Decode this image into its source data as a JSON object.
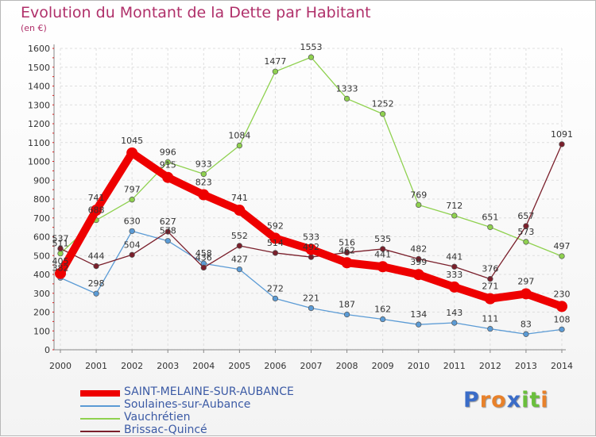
{
  "title": "Evolution du Montant de la Dette par Habitant",
  "unit": "(en €)",
  "logo": {
    "letters": [
      "P",
      "r",
      "o",
      "x",
      "i",
      "t",
      "i"
    ],
    "colors": [
      "#3a6cc8",
      "#e8812a",
      "#e8812a",
      "#3a6cc8",
      "#6abf3c",
      "#6abf3c",
      "#e8812a"
    ]
  },
  "chart_data": {
    "type": "line",
    "x": [
      "2000",
      "2001",
      "2002",
      "2003",
      "2004",
      "2005",
      "2006",
      "2007",
      "2008",
      "2009",
      "2010",
      "2011",
      "2012",
      "2013",
      "2014"
    ],
    "yticks": [
      0,
      100,
      200,
      300,
      400,
      500,
      600,
      700,
      800,
      900,
      1000,
      1100,
      1200,
      1300,
      1400,
      1500,
      1600
    ],
    "ylim": [
      0,
      1600
    ],
    "grid": true,
    "legend_position": "bottom-left",
    "series": [
      {
        "name": "SAINT-MELAINE-SUR-AUBANCE",
        "color": "#ee0000",
        "highlight": true,
        "values": [
          405,
          741,
          1045,
          915,
          823,
          741,
          592,
          533,
          462,
          441,
          399,
          333,
          271,
          297,
          230
        ],
        "labels": [
          "405",
          "741",
          "1045",
          "915",
          "823",
          "741",
          "592",
          "533",
          "462",
          "441",
          "399",
          "333",
          "271",
          "297",
          "230"
        ]
      },
      {
        "name": "Soulaines-sur-Aubance",
        "color": "#5b9bd5",
        "highlight": false,
        "values": [
          382,
          298,
          630,
          578,
          458,
          427,
          272,
          221,
          187,
          162,
          134,
          143,
          111,
          83,
          108
        ],
        "labels": [
          "382",
          "298",
          "630",
          "578",
          "458",
          "427",
          "272",
          "221",
          "187",
          "162",
          "134",
          "143",
          "111",
          "83",
          "108"
        ]
      },
      {
        "name": "Vauchrétien",
        "color": "#8fd14f",
        "highlight": false,
        "values": [
          511,
          688,
          797,
          996,
          933,
          1084,
          1477,
          1553,
          1333,
          1252,
          769,
          712,
          651,
          573,
          497
        ],
        "labels": [
          "511",
          "688",
          "797",
          "996",
          "933",
          "1084",
          "1477",
          "1553",
          "1333",
          "1252",
          "769",
          "712",
          "651",
          "573",
          "497"
        ]
      },
      {
        "name": "Brissac-Quincé",
        "color": "#7a1f2b",
        "highlight": false,
        "values": [
          537,
          444,
          504,
          627,
          436,
          552,
          514,
          492,
          516,
          535,
          482,
          441,
          376,
          657,
          1091
        ],
        "labels": [
          "537",
          "444",
          "504",
          "627",
          "436",
          "552",
          "514",
          "492",
          "516",
          "535",
          "482",
          "441",
          "376",
          "657",
          "1091"
        ]
      }
    ]
  }
}
